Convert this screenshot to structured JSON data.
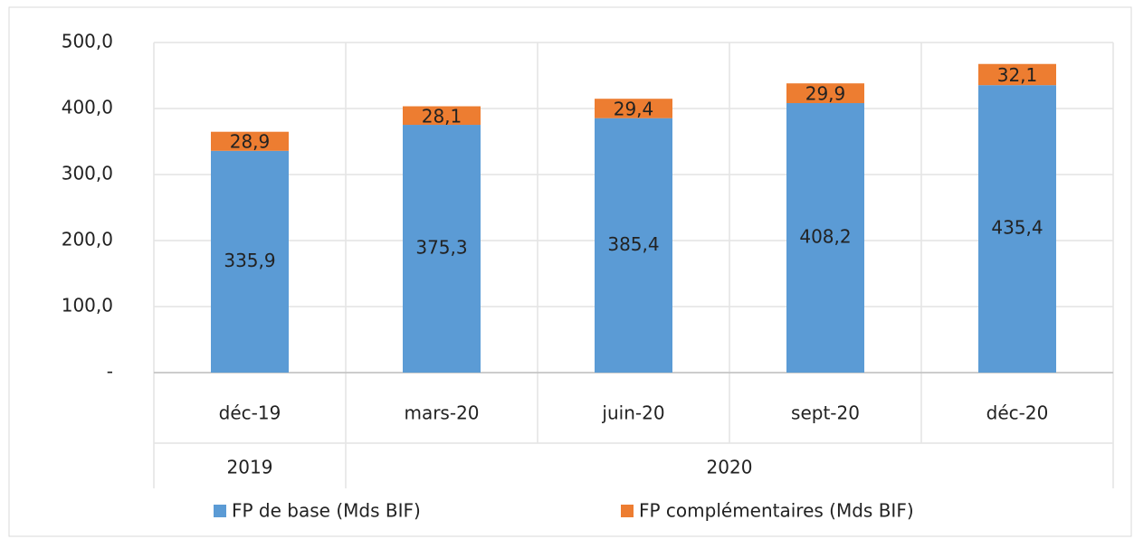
{
  "chart_data": {
    "type": "stacked_bar",
    "categories": [
      "déc-19",
      "mars-20",
      "juin-20",
      "sept-20",
      "déc-20"
    ],
    "category_groups": [
      {
        "label": "2019",
        "count": 1
      },
      {
        "label": "2020",
        "count": 4
      }
    ],
    "series": [
      {
        "name": "FP de base (Mds BIF)",
        "color": "#5b9bd5",
        "values": [
          335.9,
          375.3,
          385.4,
          408.2,
          435.4
        ],
        "value_labels": [
          "335,9",
          "375,3",
          "385,4",
          "408,2",
          "435,4"
        ]
      },
      {
        "name": "FP complémentaires (Mds BIF)",
        "color": "#ed7d31",
        "values": [
          28.9,
          28.1,
          29.4,
          29.9,
          32.1
        ],
        "value_labels": [
          "28,9",
          "28,1",
          "29,4",
          "29,9",
          "32,1"
        ]
      }
    ],
    "ylim": [
      0,
      500
    ],
    "yticks": [
      {
        "value": 0,
        "label": "-"
      },
      {
        "value": 100,
        "label": "100,0"
      },
      {
        "value": 200,
        "label": "200,0"
      },
      {
        "value": 300,
        "label": "300,0"
      },
      {
        "value": 400,
        "label": "400,0"
      },
      {
        "value": 500,
        "label": "500,0"
      }
    ],
    "grid": true,
    "legend": "bottom"
  }
}
